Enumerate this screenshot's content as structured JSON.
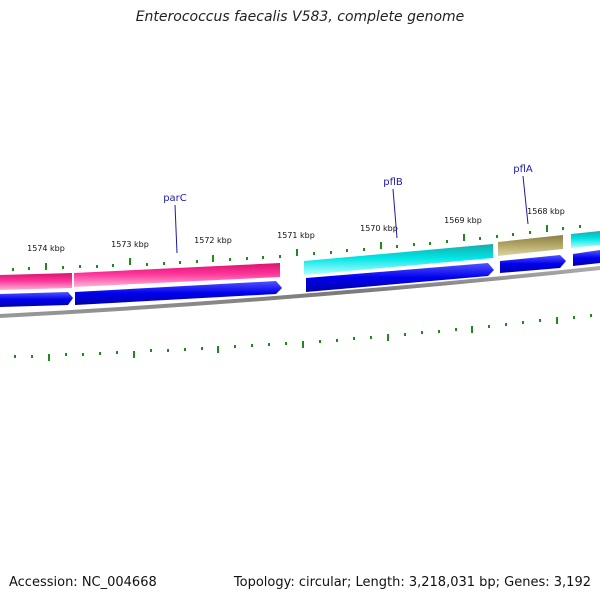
{
  "title": "Enterococcus faecalis V583, complete genome",
  "footer": {
    "accession": "Accession: NC_004668",
    "info": "Topology: circular; Length: 3,218,031 bp; Genes: 3,192"
  },
  "ticks": [
    "1574 kbp",
    "1573 kbp",
    "1572 kbp",
    "1571 kbp",
    "1570 kbp",
    "1569 kbp",
    "1568 kbp"
  ],
  "genes": [
    {
      "name": "parC"
    },
    {
      "name": "pflB"
    },
    {
      "name": "pflA"
    }
  ],
  "colors": {
    "gene_pink": "#ff3399",
    "gene_cyan": "#00e5e5",
    "gene_olive": "#b5a866",
    "cds_blue": "#0000ee",
    "backbone": "#888888",
    "gc_skew": "#1f8a1f",
    "label_blue": "#1a1aa6"
  }
}
